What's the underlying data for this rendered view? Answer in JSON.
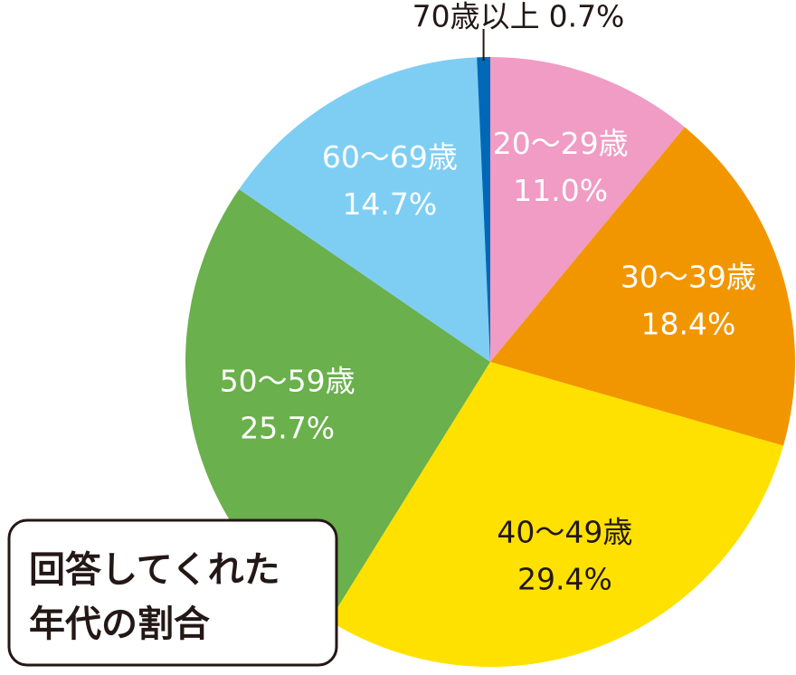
{
  "chart_data": {
    "type": "pie",
    "title_lines": [
      "回答してくれた",
      "年代の割合"
    ],
    "categories": [
      "20〜29歳",
      "30〜39歳",
      "40〜49歳",
      "50〜59歳",
      "60〜69歳",
      "70歳以上"
    ],
    "values": [
      11.0,
      18.4,
      29.4,
      25.7,
      14.7,
      0.7
    ],
    "value_labels": [
      "11.0%",
      "18.4%",
      "29.4%",
      "25.7%",
      "14.7%",
      "0.7%"
    ],
    "colors": [
      "#f09cc4",
      "#f29600",
      "#ffe100",
      "#6ab04c",
      "#7ecef4",
      "#0068b7"
    ],
    "start_angle": "top",
    "direction": "clockwise"
  }
}
